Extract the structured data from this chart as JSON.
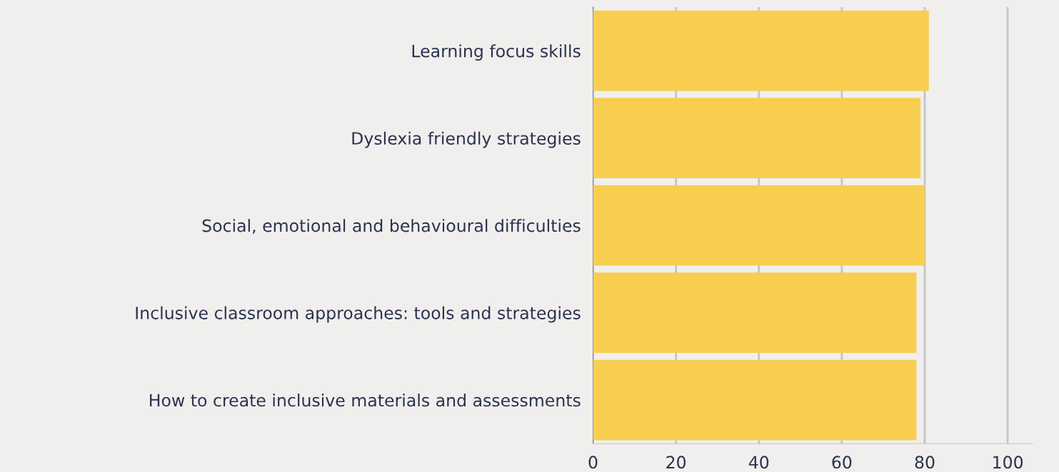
{
  "chart_data": {
    "type": "bar",
    "orientation": "horizontal",
    "categories": [
      "Learning focus skills",
      "Dyslexia friendly strategies",
      "Social, emotional and behavioural difficulties",
      "Inclusive classroom approaches: tools and strategies",
      "How to create inclusive materials and assessments"
    ],
    "values": [
      81,
      79,
      80,
      78,
      78
    ],
    "color": "#f7ce50",
    "xlim": [
      0,
      106
    ],
    "xticks": [
      0,
      20,
      40,
      60,
      80,
      100
    ],
    "grid": "x"
  }
}
